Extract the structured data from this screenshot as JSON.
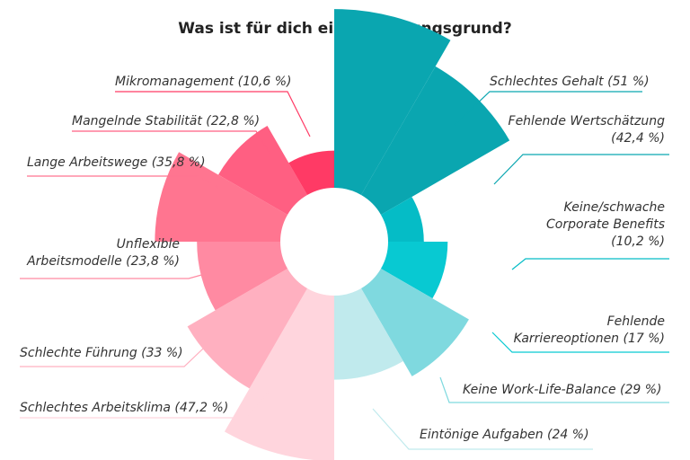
{
  "chart_data": {
    "type": "pie",
    "title": "Was ist für dich ein Kündigungsgrund?",
    "variant": "radial-bar (equal-angle segments, radius proportional to value)",
    "categories": [
      {
        "label": "Schlechtes Gehalt (51 %)",
        "value": 51,
        "color": "#0aa6b0"
      },
      {
        "label": "Fehlende Wertschätzung (42,4 %)",
        "value": 42.4,
        "color": "#0aa6b0"
      },
      {
        "label": "Keine/schwache Corporate Benefits (10,2 %)",
        "value": 10.2,
        "color": "#05bcc6"
      },
      {
        "label": "Fehlende Karriereoptionen (17 %)",
        "value": 17,
        "color": "#08c9d2"
      },
      {
        "label": "Keine Work-Life-Balance (29 %)",
        "value": 29,
        "color": "#7fd9df"
      },
      {
        "label": "Eintönige Aufgaben (24 %)",
        "value": 24,
        "color": "#c0eaed"
      },
      {
        "label": "Schlechtes Arbeitsklima (47,2 %)",
        "value": 47.2,
        "color": "#ffd5dd"
      },
      {
        "label": "Schlechte Führung (33 %)",
        "value": 33,
        "color": "#ffb0c0"
      },
      {
        "label": "Unflexible Arbeitsmodelle (23,8 %)",
        "value": 23.8,
        "color": "#ff8aa2"
      },
      {
        "label": "Lange Arbeitswege (35,8 %)",
        "value": 35.8,
        "color": "#ff7590"
      },
      {
        "label": "Mangelnde Stabilität (22,8 %)",
        "value": 22.8,
        "color": "#ff5f82"
      },
      {
        "label": "Mikromanagement (10,6 %)",
        "value": 10.6,
        "color": "#ff3a65"
      }
    ]
  },
  "labels": [
    {
      "text": "Schlechtes Gehalt (51 %)",
      "align": "left"
    },
    {
      "text": "Fehlende Wertschätzung\n(42,4 %)",
      "align": "right"
    },
    {
      "text": "Keine/schwache\nCorporate Benefits\n(10,2 %)",
      "align": "right"
    },
    {
      "text": "Fehlende\nKarriereoptionen (17 %)",
      "align": "right"
    },
    {
      "text": "Keine Work-Life-Balance (29 %)",
      "align": "left"
    },
    {
      "text": "Eintönige Aufgaben (24 %)",
      "align": "left"
    },
    {
      "text": "Schlechtes Arbeitsklima (47,2 %)",
      "align": "left"
    },
    {
      "text": "Schlechte Führung (33 %)",
      "align": "left"
    },
    {
      "text": "Unflexible\nArbeitsmodelle (23,8 %)",
      "align": "right"
    },
    {
      "text": "Lange Arbeitswege (35,8 %)",
      "align": "left"
    },
    {
      "text": "Mangelnde Stabilität (22,8 %)",
      "align": "left"
    },
    {
      "text": "Mikromanagement (10,6 %)",
      "align": "left"
    }
  ]
}
